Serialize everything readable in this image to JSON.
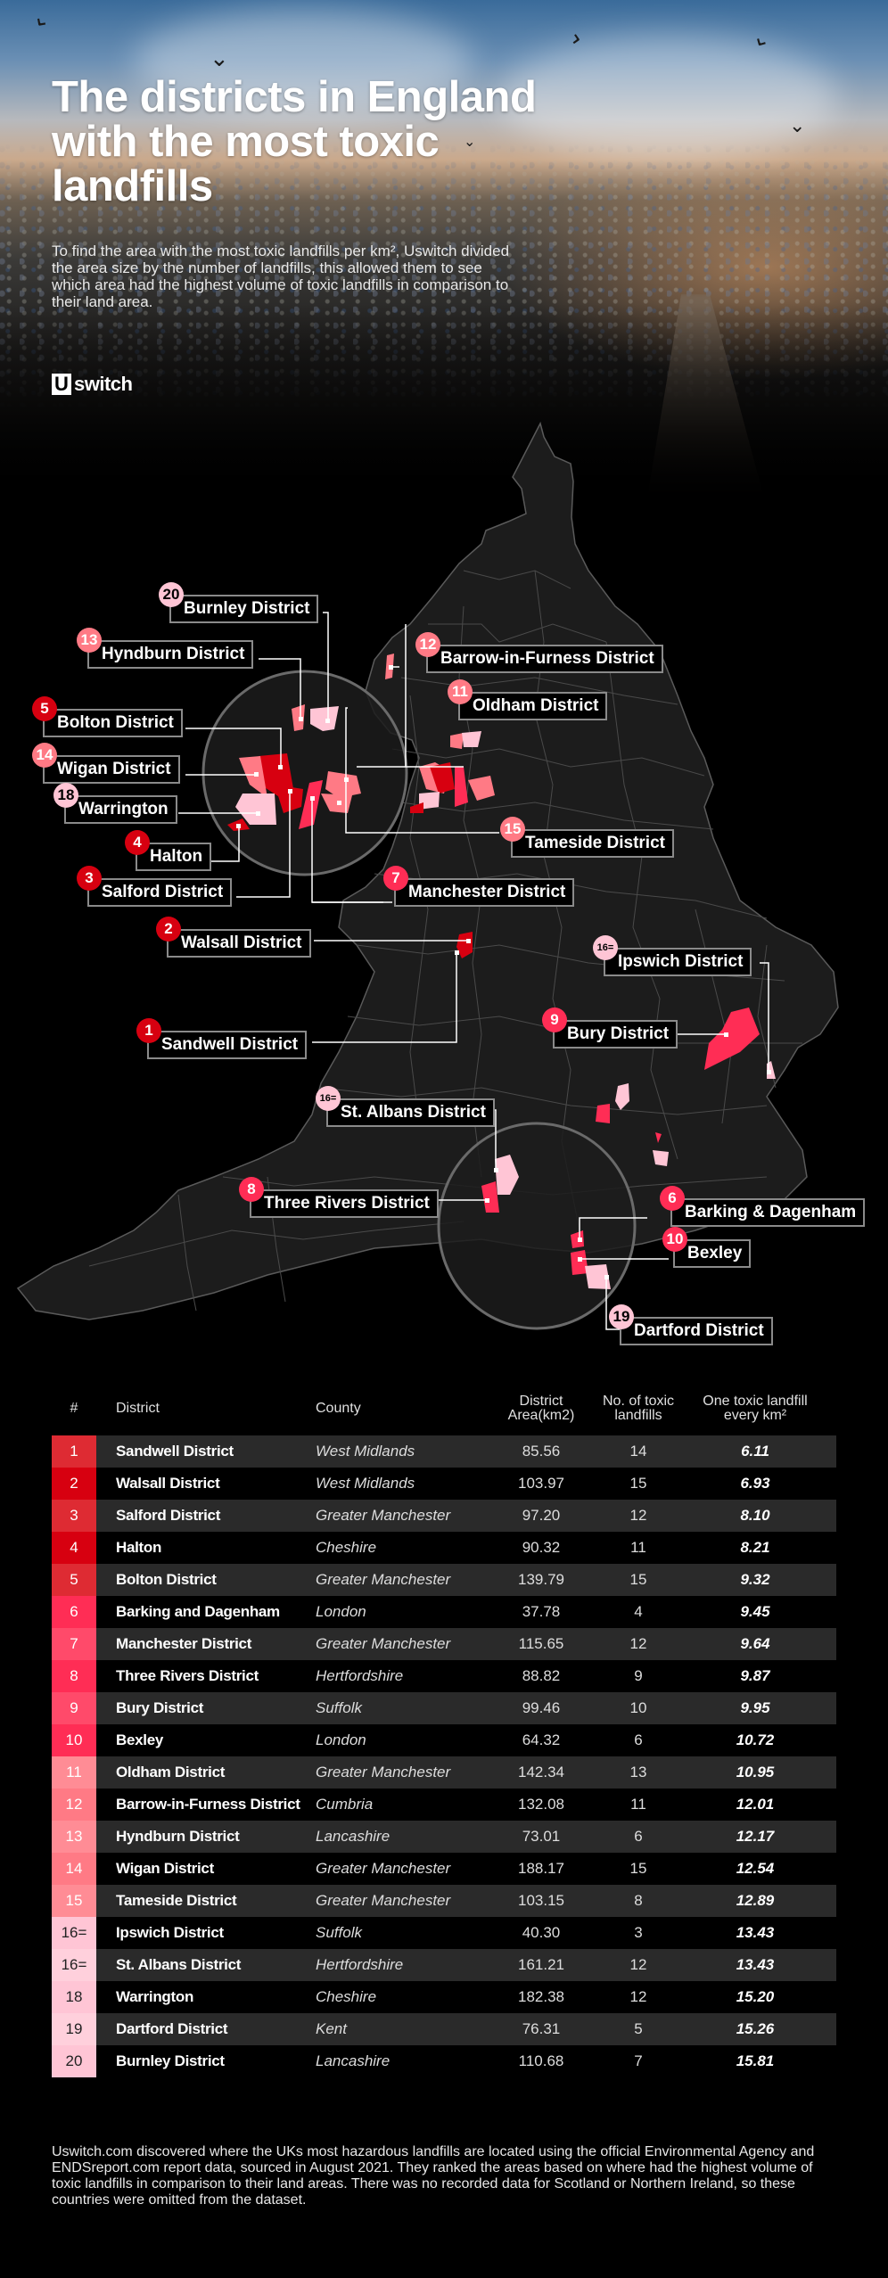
{
  "header": {
    "title": "The districts in England with the most toxic landfills",
    "intro": "To find the area with the most toxic landfills per km², Uswitch divided the area size by the number of landfills, this allowed them to see which area had the highest volume of toxic landfills in comparison to their land area.",
    "logo_mark": "U",
    "logo_word": "switch"
  },
  "colors": {
    "rank_1_5": "#d70010",
    "rank_1_5_alt": "#de2b33",
    "rank_6_10": "#ff2d55",
    "rank_6_10_alt": "#ff4a6a",
    "rank_11_15": "#ff7a85",
    "rank_11_15_alt": "#ff8c95",
    "rank_16_20": "#ffc5d5",
    "rank_16_20_alt": "#ffd0dc",
    "map_land": "#1c1c1c",
    "map_border": "#5a5a5a"
  },
  "map": {
    "callouts": [
      {
        "rank": "20",
        "label": "Burnley District"
      },
      {
        "rank": "13",
        "label": "Hyndburn District"
      },
      {
        "rank": "12",
        "label": "Barrow-in-Furness District"
      },
      {
        "rank": "11",
        "label": "Oldham District"
      },
      {
        "rank": "5",
        "label": "Bolton District"
      },
      {
        "rank": "14",
        "label": "Wigan District"
      },
      {
        "rank": "18",
        "label": "Warrington"
      },
      {
        "rank": "15",
        "label": "Tameside District"
      },
      {
        "rank": "4",
        "label": "Halton"
      },
      {
        "rank": "3",
        "label": "Salford District"
      },
      {
        "rank": "7",
        "label": "Manchester District"
      },
      {
        "rank": "2",
        "label": "Walsall District"
      },
      {
        "rank": "16=",
        "label": "Ipswich District"
      },
      {
        "rank": "9",
        "label": "Bury District"
      },
      {
        "rank": "1",
        "label": "Sandwell District"
      },
      {
        "rank": "16=",
        "label": "St. Albans District"
      },
      {
        "rank": "8",
        "label": "Three Rivers District"
      },
      {
        "rank": "6",
        "label": "Barking & Dagenham"
      },
      {
        "rank": "10",
        "label": "Bexley"
      },
      {
        "rank": "19",
        "label": "Dartford District"
      }
    ]
  },
  "table": {
    "headers": [
      "#",
      "District",
      "County",
      "District Area(km2)",
      "No. of toxic landfills",
      "One toxic landfill every km²"
    ],
    "header_parts": {
      "area_1": "District",
      "area_2": "Area(km2)",
      "count_1": "No. of toxic",
      "count_2": "landfills",
      "per_1": "One toxic landfill",
      "per_2": "every km²"
    },
    "rows": [
      {
        "rank": "1",
        "district": "Sandwell District",
        "county": "West Midlands",
        "area": "85.56",
        "count": "14",
        "per": "6.11"
      },
      {
        "rank": "2",
        "district": "Walsall District",
        "county": "West Midlands",
        "area": "103.97",
        "count": "15",
        "per": "6.93"
      },
      {
        "rank": "3",
        "district": "Salford District",
        "county": "Greater Manchester",
        "area": "97.20",
        "count": "12",
        "per": "8.10"
      },
      {
        "rank": "4",
        "district": "Halton",
        "county": "Cheshire",
        "area": "90.32",
        "count": "11",
        "per": "8.21"
      },
      {
        "rank": "5",
        "district": "Bolton District",
        "county": "Greater Manchester",
        "area": "139.79",
        "count": "15",
        "per": "9.32"
      },
      {
        "rank": "6",
        "district": "Barking and Dagenham",
        "county": "London",
        "area": "37.78",
        "count": "4",
        "per": "9.45"
      },
      {
        "rank": "7",
        "district": "Manchester District",
        "county": "Greater Manchester",
        "area": "115.65",
        "count": "12",
        "per": "9.64"
      },
      {
        "rank": "8",
        "district": "Three Rivers District",
        "county": "Hertfordshire",
        "area": "88.82",
        "count": "9",
        "per": "9.87"
      },
      {
        "rank": "9",
        "district": "Bury District",
        "county": "Suffolk",
        "area": "99.46",
        "count": "10",
        "per": "9.95"
      },
      {
        "rank": "10",
        "district": "Bexley",
        "county": "London",
        "area": "64.32",
        "count": "6",
        "per": "10.72"
      },
      {
        "rank": "11",
        "district": "Oldham District",
        "county": "Greater Manchester",
        "area": "142.34",
        "count": "13",
        "per": "10.95"
      },
      {
        "rank": "12",
        "district": "Barrow-in-Furness District",
        "county": "Cumbria",
        "area": "132.08",
        "count": "11",
        "per": "12.01"
      },
      {
        "rank": "13",
        "district": "Hyndburn District",
        "county": "Lancashire",
        "area": "73.01",
        "count": "6",
        "per": "12.17"
      },
      {
        "rank": "14",
        "district": "Wigan District",
        "county": "Greater Manchester",
        "area": "188.17",
        "count": "15",
        "per": "12.54"
      },
      {
        "rank": "15",
        "district": "Tameside District",
        "county": "Greater Manchester",
        "area": "103.15",
        "count": "8",
        "per": "12.89"
      },
      {
        "rank": "16=",
        "district": "Ipswich District",
        "county": "Suffolk",
        "area": "40.30",
        "count": "3",
        "per": "13.43"
      },
      {
        "rank": "16=",
        "district": "St. Albans District",
        "county": "Hertfordshire",
        "area": "161.21",
        "count": "12",
        "per": "13.43"
      },
      {
        "rank": "18",
        "district": "Warrington",
        "county": "Cheshire",
        "area": "182.38",
        "count": "12",
        "per": "15.20"
      },
      {
        "rank": "19",
        "district": "Dartford District",
        "county": "Kent",
        "area": "76.31",
        "count": "5",
        "per": "15.26"
      },
      {
        "rank": "20",
        "district": "Burnley District",
        "county": "Lancashire",
        "area": "110.68",
        "count": "7",
        "per": "15.81"
      }
    ]
  },
  "footer": {
    "text": "Uswitch.com discovered where the UKs most hazardous landfills are located using the official Environmental Agency and ENDSreport.com report data, sourced in August 2021. They ranked the areas based on where had the highest volume of toxic landfills in comparison to their land areas. There was no recorded data for Scotland or Northern Ireland, so these countries were omitted from the dataset."
  }
}
